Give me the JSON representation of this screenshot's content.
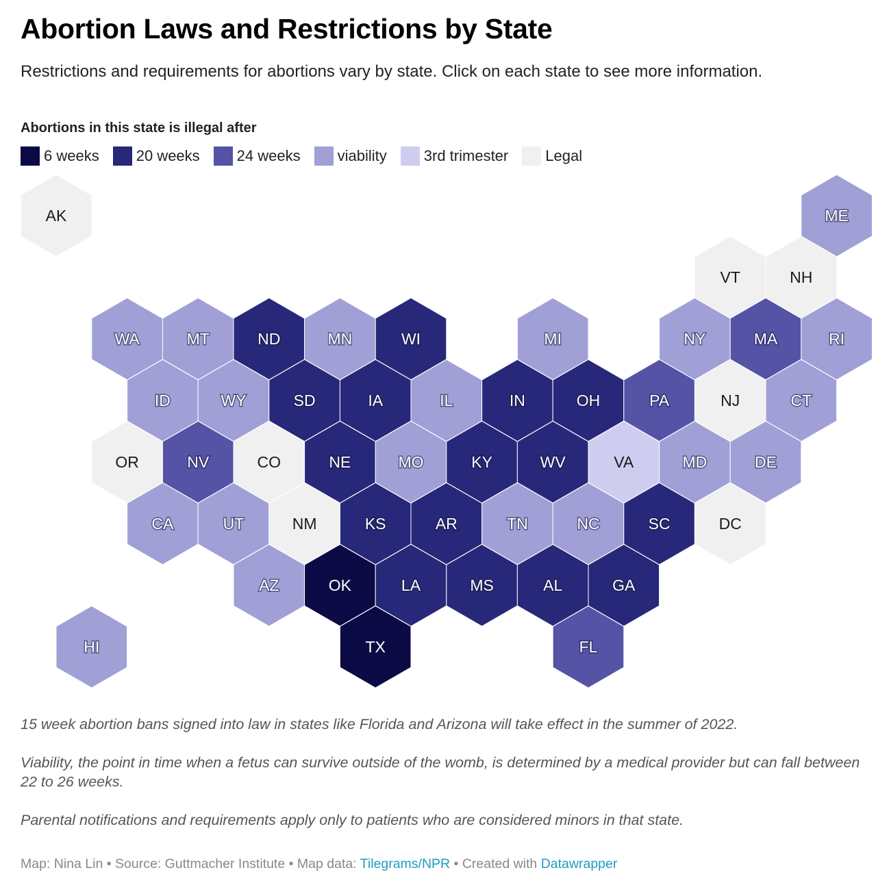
{
  "title": "Abortion Laws and Restrictions by State",
  "subtitle": "Restrictions and requirements for abortions vary by state. Click on each state to see more information.",
  "legend": {
    "title": "Abortions in this state is illegal after",
    "items": [
      {
        "key": "6w",
        "label": "6 weeks",
        "color": "#0b0a45"
      },
      {
        "key": "20w",
        "label": "20 weeks",
        "color": "#272879"
      },
      {
        "key": "24w",
        "label": "24 weeks",
        "color": "#5453a6"
      },
      {
        "key": "via",
        "label": "viability",
        "color": "#a09fd6"
      },
      {
        "key": "3t",
        "label": "3rd trimester",
        "color": "#cfcdef"
      },
      {
        "key": "legal",
        "label": "Legal",
        "color": "#f0f0f0"
      }
    ]
  },
  "chart_data": {
    "type": "hex-tile-map",
    "states": [
      {
        "abbr": "AK",
        "row": 0,
        "col": 0,
        "category": "legal"
      },
      {
        "abbr": "ME",
        "row": 0,
        "col": 11,
        "category": "via"
      },
      {
        "abbr": "VT",
        "row": 1,
        "col": 9.5,
        "category": "legal"
      },
      {
        "abbr": "NH",
        "row": 1,
        "col": 10.5,
        "category": "legal"
      },
      {
        "abbr": "WA",
        "row": 2,
        "col": 1,
        "category": "via"
      },
      {
        "abbr": "MT",
        "row": 2,
        "col": 2,
        "category": "via"
      },
      {
        "abbr": "ND",
        "row": 2,
        "col": 3,
        "category": "20w"
      },
      {
        "abbr": "MN",
        "row": 2,
        "col": 4,
        "category": "via"
      },
      {
        "abbr": "WI",
        "row": 2,
        "col": 5,
        "category": "20w"
      },
      {
        "abbr": "MI",
        "row": 2,
        "col": 7,
        "category": "via"
      },
      {
        "abbr": "NY",
        "row": 2,
        "col": 9,
        "category": "via"
      },
      {
        "abbr": "MA",
        "row": 2,
        "col": 10,
        "category": "24w"
      },
      {
        "abbr": "RI",
        "row": 2,
        "col": 11,
        "category": "via"
      },
      {
        "abbr": "ID",
        "row": 3,
        "col": 1.5,
        "category": "via"
      },
      {
        "abbr": "WY",
        "row": 3,
        "col": 2.5,
        "category": "via"
      },
      {
        "abbr": "SD",
        "row": 3,
        "col": 3.5,
        "category": "20w"
      },
      {
        "abbr": "IA",
        "row": 3,
        "col": 4.5,
        "category": "20w"
      },
      {
        "abbr": "IL",
        "row": 3,
        "col": 5.5,
        "category": "via"
      },
      {
        "abbr": "IN",
        "row": 3,
        "col": 6.5,
        "category": "20w"
      },
      {
        "abbr": "OH",
        "row": 3,
        "col": 7.5,
        "category": "20w"
      },
      {
        "abbr": "PA",
        "row": 3,
        "col": 8.5,
        "category": "24w"
      },
      {
        "abbr": "NJ",
        "row": 3,
        "col": 9.5,
        "category": "legal"
      },
      {
        "abbr": "CT",
        "row": 3,
        "col": 10.5,
        "category": "via"
      },
      {
        "abbr": "OR",
        "row": 4,
        "col": 1,
        "category": "legal"
      },
      {
        "abbr": "NV",
        "row": 4,
        "col": 2,
        "category": "24w"
      },
      {
        "abbr": "CO",
        "row": 4,
        "col": 3,
        "category": "legal"
      },
      {
        "abbr": "NE",
        "row": 4,
        "col": 4,
        "category": "20w"
      },
      {
        "abbr": "MO",
        "row": 4,
        "col": 5,
        "category": "via"
      },
      {
        "abbr": "KY",
        "row": 4,
        "col": 6,
        "category": "20w"
      },
      {
        "abbr": "WV",
        "row": 4,
        "col": 7,
        "category": "20w"
      },
      {
        "abbr": "VA",
        "row": 4,
        "col": 8,
        "category": "3t"
      },
      {
        "abbr": "MD",
        "row": 4,
        "col": 9,
        "category": "via"
      },
      {
        "abbr": "DE",
        "row": 4,
        "col": 10,
        "category": "via"
      },
      {
        "abbr": "CA",
        "row": 5,
        "col": 1.5,
        "category": "via"
      },
      {
        "abbr": "UT",
        "row": 5,
        "col": 2.5,
        "category": "via"
      },
      {
        "abbr": "NM",
        "row": 5,
        "col": 3.5,
        "category": "legal"
      },
      {
        "abbr": "KS",
        "row": 5,
        "col": 4.5,
        "category": "20w"
      },
      {
        "abbr": "AR",
        "row": 5,
        "col": 5.5,
        "category": "20w"
      },
      {
        "abbr": "TN",
        "row": 5,
        "col": 6.5,
        "category": "via"
      },
      {
        "abbr": "NC",
        "row": 5,
        "col": 7.5,
        "category": "via"
      },
      {
        "abbr": "SC",
        "row": 5,
        "col": 8.5,
        "category": "20w"
      },
      {
        "abbr": "DC",
        "row": 5,
        "col": 9.5,
        "category": "legal"
      },
      {
        "abbr": "AZ",
        "row": 6,
        "col": 3,
        "category": "via"
      },
      {
        "abbr": "OK",
        "row": 6,
        "col": 4,
        "category": "6w"
      },
      {
        "abbr": "LA",
        "row": 6,
        "col": 5,
        "category": "20w"
      },
      {
        "abbr": "MS",
        "row": 6,
        "col": 6,
        "category": "20w"
      },
      {
        "abbr": "AL",
        "row": 6,
        "col": 7,
        "category": "20w"
      },
      {
        "abbr": "GA",
        "row": 6,
        "col": 8,
        "category": "20w"
      },
      {
        "abbr": "HI",
        "row": 7,
        "col": 0.5,
        "category": "via"
      },
      {
        "abbr": "TX",
        "row": 7,
        "col": 4.5,
        "category": "6w"
      },
      {
        "abbr": "FL",
        "row": 7,
        "col": 7.5,
        "category": "24w"
      }
    ]
  },
  "notes": [
    "15 week abortion bans signed into law in states like Florida and Arizona will take effect in the summer of 2022.",
    "Viability, the point in time when a fetus can survive outside of the womb, is determined by a medical provider but can fall between 22 to 26 weeks.",
    "Parental notifications and requirements apply only to patients who are considered minors in that state."
  ],
  "footer": {
    "map_credit": "Map: Nina Lin",
    "separator": " • ",
    "source": "Source: Guttmacher Institute",
    "map_data_prefix": "Map data: ",
    "map_data_link": "Tilegrams/NPR",
    "created_prefix": "Created with ",
    "created_link": "Datawrapper"
  }
}
